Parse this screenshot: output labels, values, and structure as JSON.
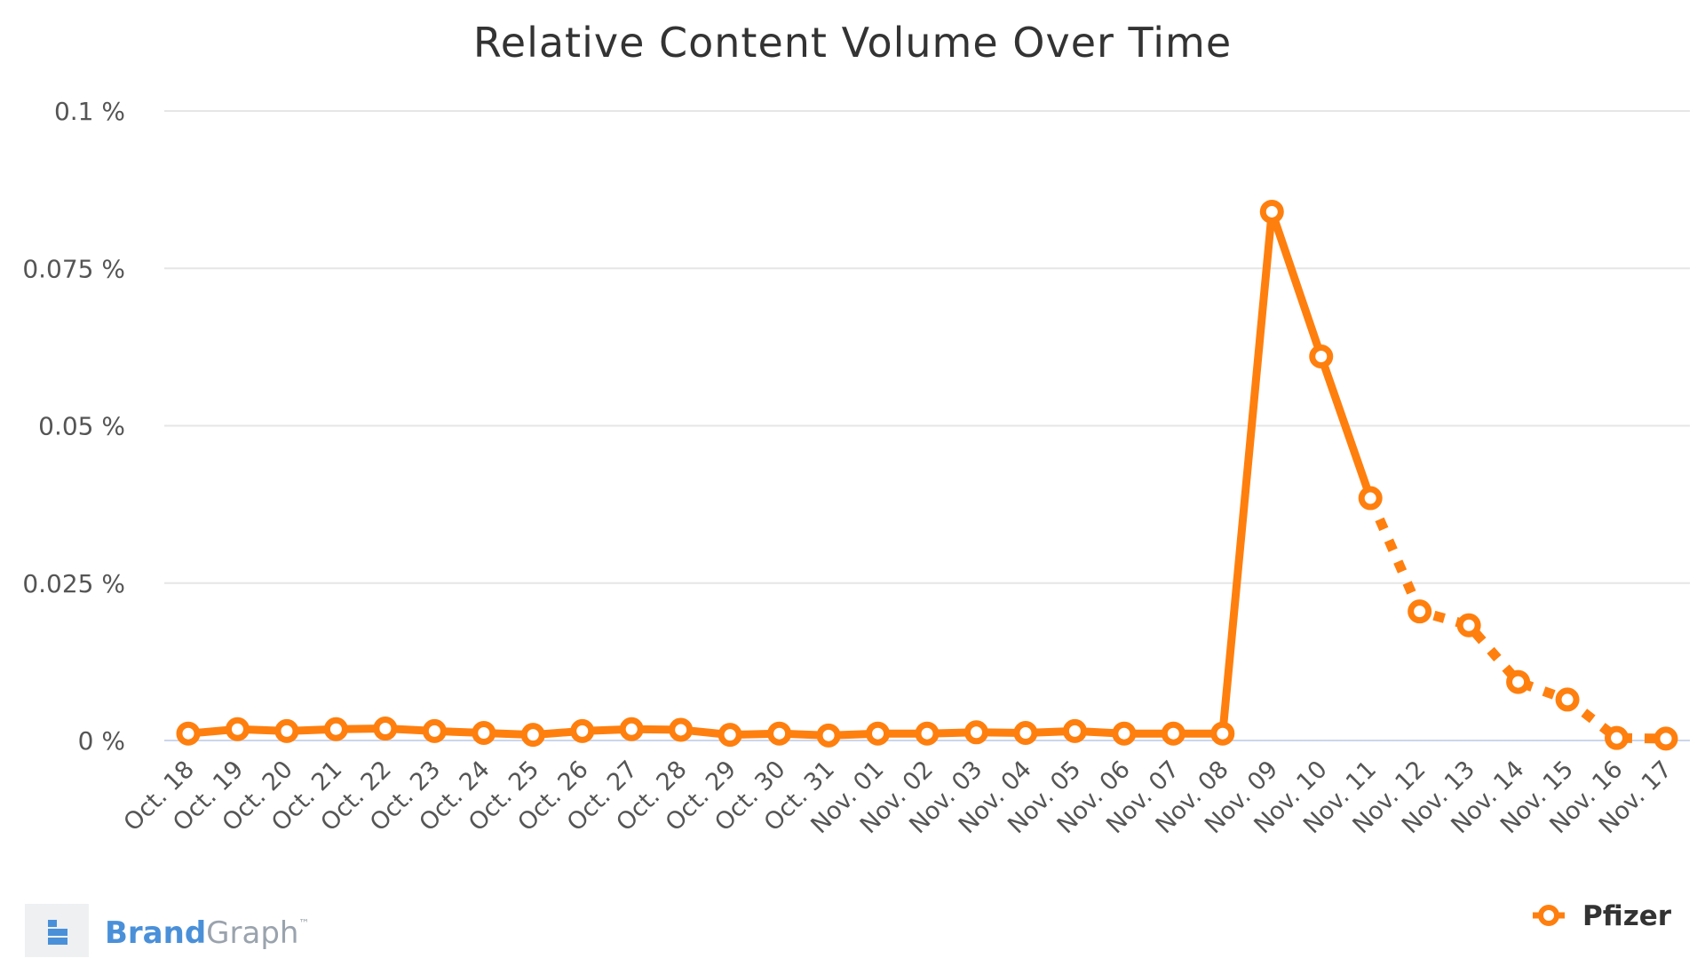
{
  "chart_data": {
    "type": "line",
    "title": "Relative Content Volume Over Time",
    "xlabel": "",
    "ylabel": "",
    "categories": [
      "Oct. 18",
      "Oct. 19",
      "Oct. 20",
      "Oct. 21",
      "Oct. 22",
      "Oct. 23",
      "Oct. 24",
      "Oct. 25",
      "Oct. 26",
      "Oct. 27",
      "Oct. 28",
      "Oct. 29",
      "Oct. 30",
      "Oct. 31",
      "Nov. 01",
      "Nov. 02",
      "Nov. 03",
      "Nov. 04",
      "Nov. 05",
      "Nov. 06",
      "Nov. 07",
      "Nov. 08",
      "Nov. 09",
      "Nov. 10",
      "Nov. 11",
      "Nov. 12",
      "Nov. 13",
      "Nov. 14",
      "Nov. 15",
      "Nov. 16",
      "Nov. 17"
    ],
    "ylim": [
      0,
      0.1
    ],
    "yticks": [
      0,
      0.025,
      0.05,
      0.075,
      0.1
    ],
    "ytick_labels": [
      "0 %",
      "0.025 %",
      "0.05 %",
      "0.075 %",
      "0.1 %"
    ],
    "grid": true,
    "legend": "bottom-right",
    "series": [
      {
        "name": "Pfizer",
        "color": "#ff7f0e",
        "values": [
          0.0011,
          0.0018,
          0.0015,
          0.0018,
          0.0019,
          0.0015,
          0.0012,
          0.0009,
          0.0015,
          0.0018,
          0.0017,
          0.0009,
          0.0011,
          0.0008,
          0.0011,
          0.0011,
          0.0013,
          0.0012,
          0.0015,
          0.0011,
          0.0011,
          0.0011,
          0.084,
          0.061,
          0.0385,
          0.0205,
          0.0183,
          0.0093,
          0.0065,
          0.0004,
          0.0003
        ],
        "dashed_from_index": 24
      }
    ]
  },
  "brand": {
    "name_bold": "Brand",
    "name_light": "Graph",
    "trademark": "™"
  },
  "colors": {
    "grid": "#e6e6e6",
    "baseline": "#ccd6eb",
    "brand_blue": "#4a90d9"
  }
}
